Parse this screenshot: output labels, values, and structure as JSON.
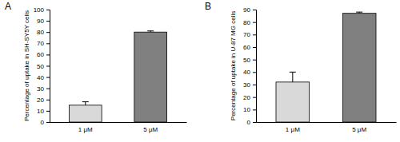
{
  "chart_data": [
    {
      "type": "bar",
      "title": "A",
      "y_label": "Percentage of uptake in SH-SY5Y cells",
      "categories": [
        "1 μM",
        "5 μM"
      ],
      "values": [
        15,
        80
      ],
      "errors": [
        3,
        1
      ],
      "colors": [
        "#d9d9d9",
        "#808080"
      ],
      "ylim": [
        0,
        100
      ],
      "yticks": [
        0,
        10,
        20,
        30,
        40,
        50,
        60,
        70,
        80,
        90,
        100
      ],
      "grid": false
    },
    {
      "type": "bar",
      "title": "B",
      "y_label": "Percentage of uptake in U-87 MG cells",
      "categories": [
        "1 μM",
        "5 μM"
      ],
      "values": [
        32,
        87
      ],
      "errors": [
        8,
        1
      ],
      "colors": [
        "#d9d9d9",
        "#808080"
      ],
      "ylim": [
        0,
        90
      ],
      "yticks": [
        0,
        10,
        20,
        30,
        40,
        50,
        60,
        70,
        80,
        90
      ],
      "grid": false
    }
  ]
}
